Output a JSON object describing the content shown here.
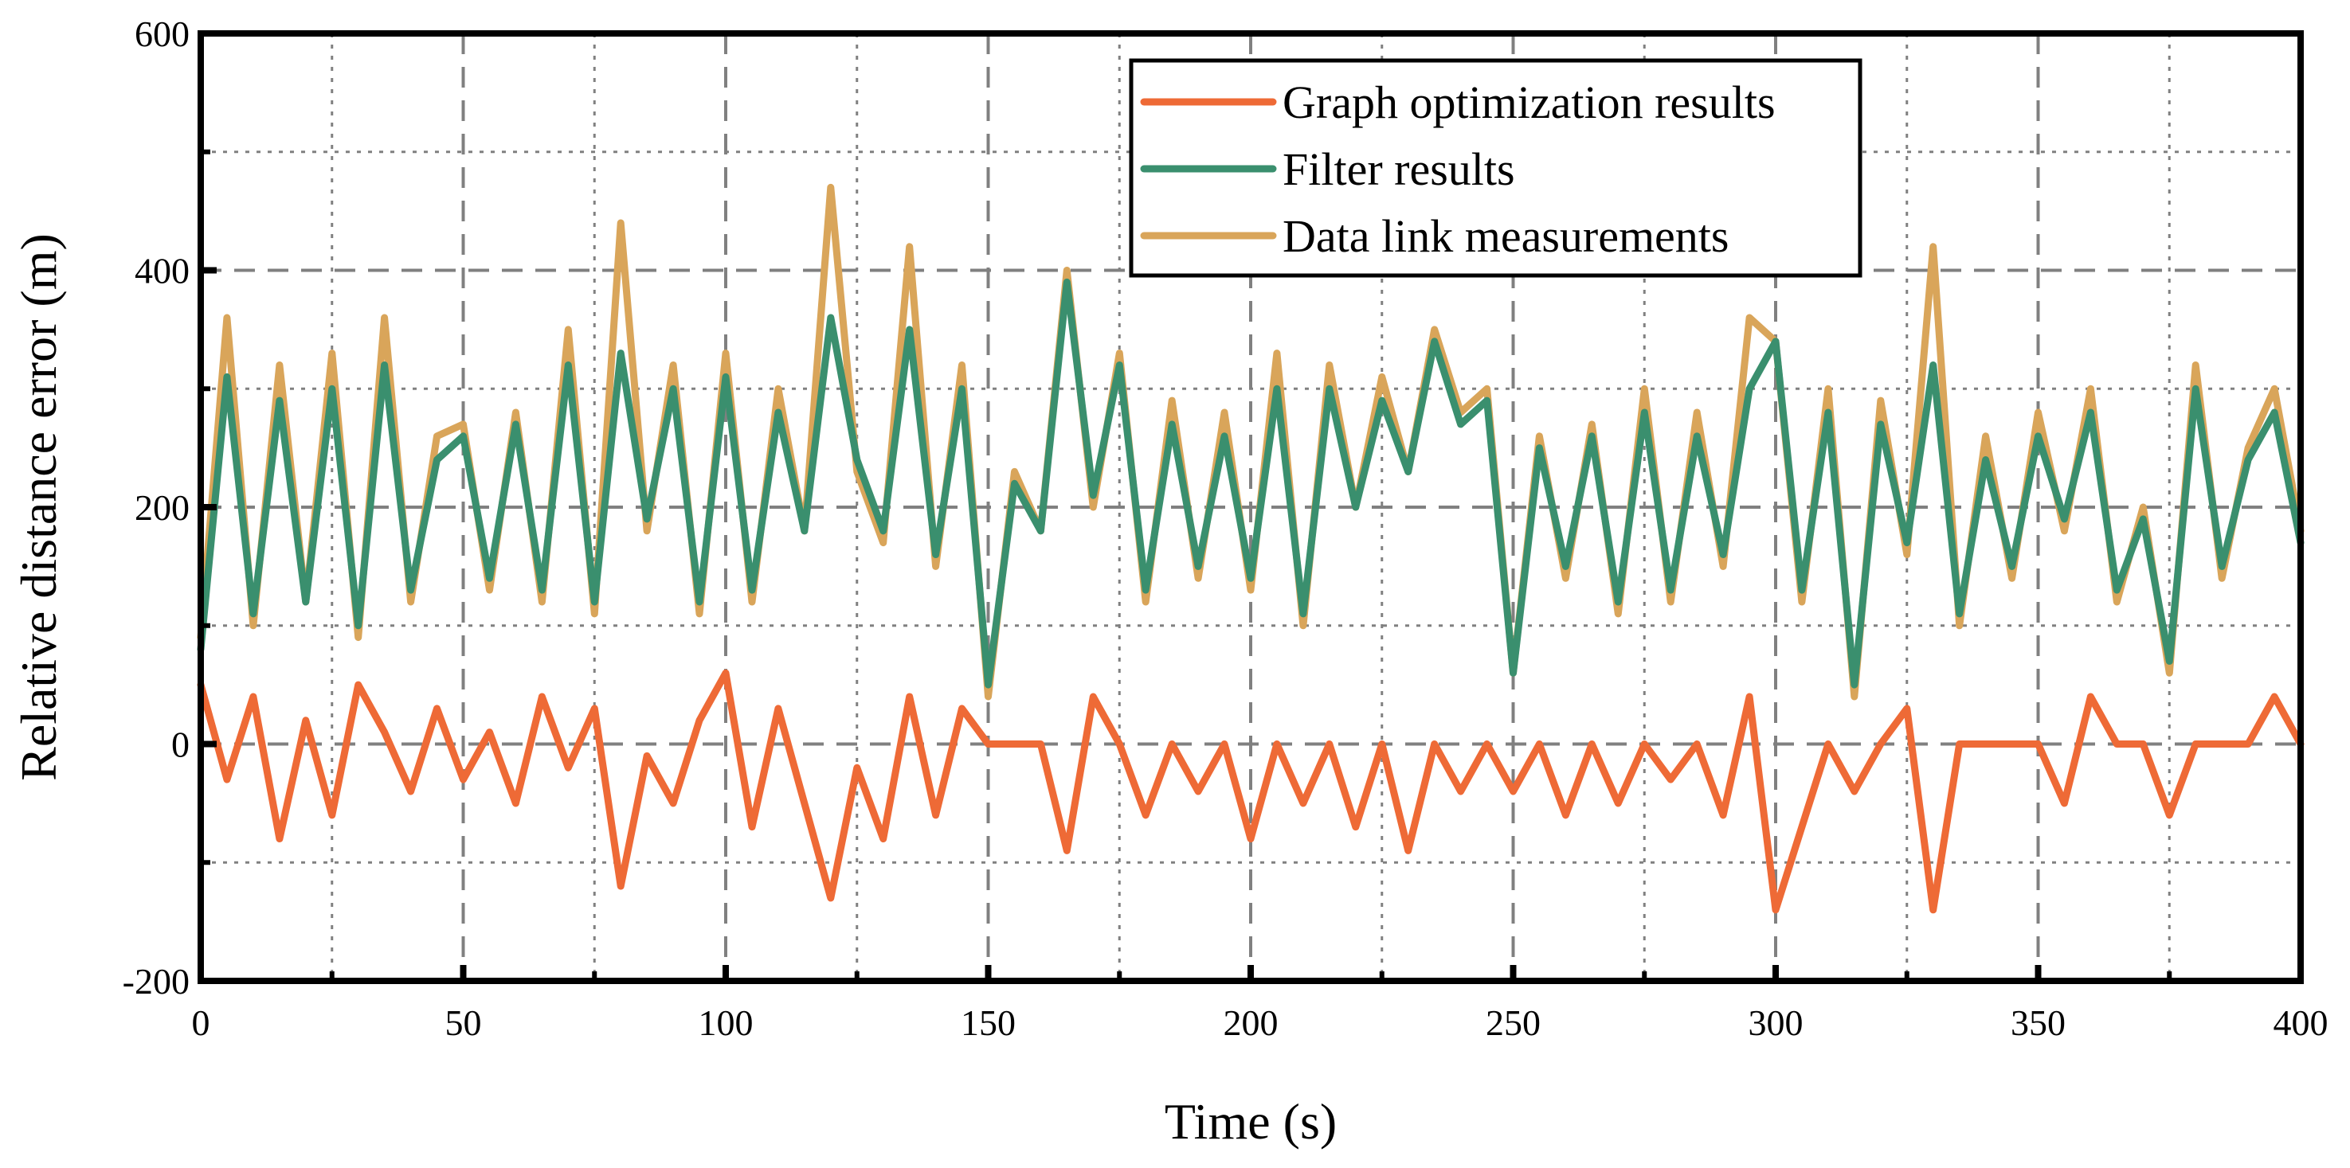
{
  "chart_data": {
    "type": "line",
    "title": "",
    "xlabel": "Time (s)",
    "ylabel": "Relative distance error (m)",
    "xlim": [
      0,
      400
    ],
    "ylim": [
      -200,
      600
    ],
    "xticks": [
      0,
      50,
      100,
      150,
      200,
      250,
      300,
      350,
      400
    ],
    "xtick_labels": [
      "0",
      "50",
      "100",
      "150",
      "200",
      "250",
      "300",
      "350",
      "400"
    ],
    "yticks": [
      -200,
      0,
      200,
      400,
      600
    ],
    "ytick_labels": [
      "-200",
      "0",
      "200",
      "400",
      "600"
    ],
    "x_minor_ticks": [
      25,
      75,
      125,
      175,
      225,
      275,
      325,
      375
    ],
    "y_minor_ticks": [
      -100,
      100,
      300,
      500
    ],
    "grid": true,
    "legend_position": "top-right",
    "x": [
      0,
      5,
      10,
      15,
      20,
      25,
      30,
      35,
      40,
      45,
      50,
      55,
      60,
      65,
      70,
      75,
      80,
      85,
      90,
      95,
      100,
      105,
      110,
      115,
      120,
      125,
      130,
      135,
      140,
      145,
      150,
      155,
      160,
      165,
      170,
      175,
      180,
      185,
      190,
      195,
      200,
      205,
      210,
      215,
      220,
      225,
      230,
      235,
      240,
      245,
      250,
      255,
      260,
      265,
      270,
      275,
      280,
      285,
      290,
      295,
      300,
      305,
      310,
      315,
      320,
      325,
      330,
      335,
      340,
      345,
      350,
      355,
      360,
      365,
      370,
      375,
      380,
      385,
      390,
      395,
      400
    ],
    "series": [
      {
        "name": "Data link measurements",
        "color": "#D9A55A",
        "values": [
          90,
          360,
          100,
          320,
          120,
          330,
          90,
          360,
          120,
          260,
          270,
          130,
          280,
          120,
          350,
          110,
          440,
          180,
          320,
          110,
          330,
          120,
          300,
          180,
          470,
          230,
          170,
          420,
          150,
          320,
          40,
          230,
          180,
          400,
          200,
          330,
          120,
          290,
          140,
          280,
          130,
          330,
          100,
          320,
          200,
          310,
          230,
          350,
          280,
          300,
          60,
          260,
          140,
          270,
          110,
          300,
          120,
          280,
          150,
          360,
          340,
          120,
          300,
          40,
          290,
          160,
          420,
          100,
          260,
          140,
          280,
          180,
          300,
          120,
          200,
          60,
          320,
          140,
          250,
          300,
          180
        ]
      },
      {
        "name": "Filter results",
        "color": "#3A8F6E",
        "values": [
          80,
          310,
          110,
          290,
          120,
          300,
          100,
          320,
          130,
          240,
          260,
          140,
          270,
          130,
          320,
          120,
          330,
          190,
          300,
          120,
          310,
          130,
          280,
          180,
          360,
          240,
          180,
          350,
          160,
          300,
          50,
          220,
          180,
          390,
          210,
          320,
          130,
          270,
          150,
          260,
          140,
          300,
          110,
          300,
          200,
          290,
          230,
          340,
          270,
          290,
          60,
          250,
          150,
          260,
          120,
          280,
          130,
          260,
          160,
          300,
          340,
          130,
          280,
          50,
          270,
          170,
          320,
          110,
          240,
          150,
          260,
          190,
          280,
          130,
          190,
          70,
          300,
          150,
          240,
          280,
          170
        ]
      },
      {
        "name": "Graph optimization results",
        "color": "#EE6A36",
        "values": [
          50,
          -30,
          40,
          -80,
          20,
          -60,
          50,
          10,
          -40,
          30,
          -30,
          10,
          -50,
          40,
          -20,
          30,
          -120,
          -10,
          -50,
          20,
          60,
          -70,
          30,
          -50,
          -130,
          -20,
          -80,
          40,
          -60,
          30,
          0,
          0,
          0,
          -90,
          40,
          0,
          -60,
          0,
          -40,
          0,
          -80,
          0,
          -50,
          0,
          -70,
          0,
          -90,
          0,
          -40,
          0,
          -40,
          0,
          -60,
          0,
          -50,
          0,
          -30,
          0,
          -60,
          40,
          -140,
          -70,
          0,
          -40,
          0,
          30,
          -140,
          0,
          0,
          0,
          0,
          -50,
          40,
          0,
          0,
          -60,
          0,
          0,
          0,
          40,
          0
        ]
      }
    ]
  },
  "legend": {
    "items": [
      {
        "label": "Graph optimization results",
        "color": "#EE6A36"
      },
      {
        "label": "Filter results",
        "color": "#3A8F6E"
      },
      {
        "label": "Data link measurements",
        "color": "#D9A55A"
      }
    ]
  }
}
